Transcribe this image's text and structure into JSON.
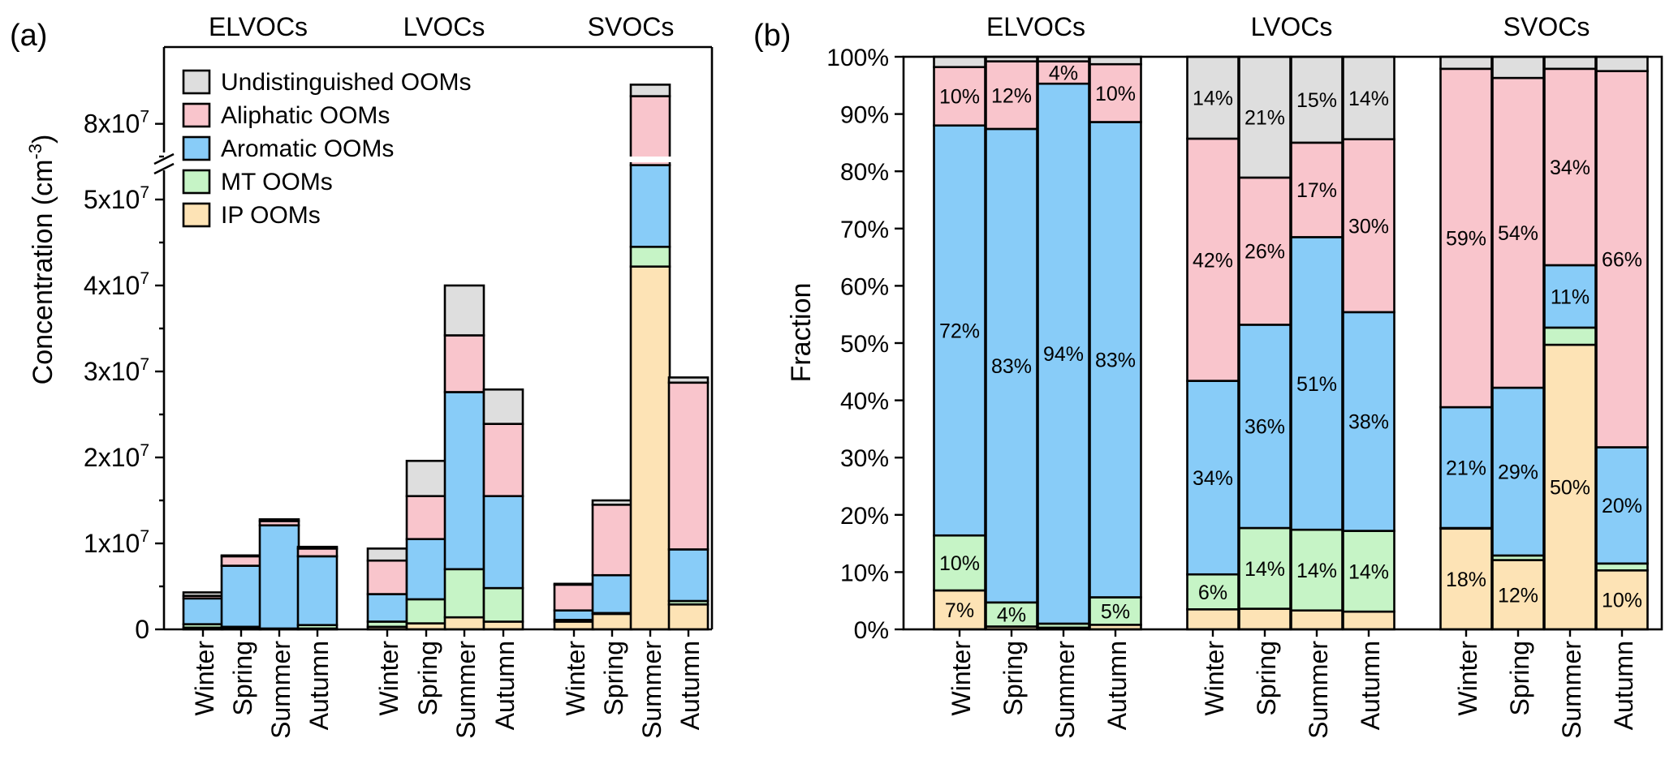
{
  "colors": {
    "ip": "#FDE3B5",
    "mt": "#C6F4C6",
    "aromatic": "#88CCF8",
    "aliphatic": "#F9C5CC",
    "undistinguished": "#DEDEDE"
  },
  "chart_data": [
    {
      "panel_label": "(a)",
      "type": "bar",
      "stacked": true,
      "ylabel_text": "Concentration (cm",
      "ylabel_sup": "-3",
      "ylabel_close": ")",
      "ylim_lower": [
        0,
        55000000
      ],
      "ylim_upper": [
        75000000,
        90000000
      ],
      "axis_break": "between 5.5x10^7 and 7.5x10^7",
      "yticks": [
        {
          "value": 0,
          "label": "0",
          "exp": ""
        },
        {
          "value": 10000000,
          "label": "1x10",
          "exp": "7"
        },
        {
          "value": 20000000,
          "label": "2x10",
          "exp": "7"
        },
        {
          "value": 30000000,
          "label": "3x10",
          "exp": "7"
        },
        {
          "value": 40000000,
          "label": "4x10",
          "exp": "7"
        },
        {
          "value": 50000000,
          "label": "5x10",
          "exp": "7"
        },
        {
          "value": 80000000,
          "label": "8x10",
          "exp": "7"
        }
      ],
      "legend": [
        {
          "key": "undistinguished",
          "label": "Undistinguished OOMs"
        },
        {
          "key": "aliphatic",
          "label": "Aliphatic OOMs"
        },
        {
          "key": "aromatic",
          "label": "Aromatic OOMs"
        },
        {
          "key": "mt",
          "label": "MT OOMs"
        },
        {
          "key": "ip",
          "label": "IP OOMs"
        }
      ],
      "stack_order": [
        "ip",
        "mt",
        "aromatic",
        "aliphatic",
        "undistinguished"
      ],
      "groups": [
        {
          "name": "ELVOCs",
          "bars": [
            {
              "season": "Winter",
              "values": [
                200000,
                400000,
                3000000,
                300000,
                400000
              ]
            },
            {
              "season": "Spring",
              "values": [
                100000,
                200000,
                7100000,
                1100000,
                100000
              ]
            },
            {
              "season": "Summer",
              "values": [
                0,
                100000,
                12000000,
                500000,
                200000
              ]
            },
            {
              "season": "Autumn",
              "values": [
                100000,
                400000,
                8000000,
                900000,
                200000
              ]
            }
          ]
        },
        {
          "name": "LVOCs",
          "bars": [
            {
              "season": "Winter",
              "values": [
                300000,
                600000,
                3200000,
                3900000,
                1400000
              ]
            },
            {
              "season": "Spring",
              "values": [
                700000,
                2800000,
                7000000,
                5000000,
                4100000
              ]
            },
            {
              "season": "Summer",
              "values": [
                1400000,
                5600000,
                20600000,
                6600000,
                5800000
              ]
            },
            {
              "season": "Autumn",
              "values": [
                900000,
                3900000,
                10700000,
                8400000,
                4000000
              ]
            }
          ]
        },
        {
          "name": "SVOCs",
          "bars": [
            {
              "season": "Winter",
              "values": [
                900000,
                200000,
                1100000,
                3000000,
                100000
              ]
            },
            {
              "season": "Spring",
              "values": [
                1800000,
                100000,
                4400000,
                8200000,
                500000
              ]
            },
            {
              "season": "Summer",
              "values": [
                42200000,
                2300000,
                9500000,
                29600000,
                1500000
              ]
            },
            {
              "season": "Autumn",
              "values": [
                2900000,
                400000,
                6000000,
                19400000,
                600000
              ]
            }
          ]
        }
      ]
    },
    {
      "panel_label": "(b)",
      "type": "bar",
      "stacked": true,
      "ylabel": "Fraction",
      "ylim": [
        0,
        100
      ],
      "yticks": [
        "0%",
        "10%",
        "20%",
        "30%",
        "40%",
        "50%",
        "60%",
        "70%",
        "80%",
        "90%",
        "100%"
      ],
      "stack_order": [
        "ip",
        "mt",
        "aromatic",
        "aliphatic",
        "undistinguished"
      ],
      "groups": [
        {
          "name": "ELVOCs",
          "bars": [
            {
              "season": "Winter",
              "values": [
                6.8,
                9.6,
                71.6,
                10.2,
                1.8
              ],
              "labels": [
                "7%",
                "10%",
                "72%",
                "10%",
                ""
              ]
            },
            {
              "season": "Spring",
              "values": [
                0.5,
                4.2,
                82.7,
                11.8,
                0.8
              ],
              "labels": [
                "",
                "4%",
                "83%",
                "12%",
                ""
              ]
            },
            {
              "season": "Summer",
              "values": [
                0.3,
                0.7,
                94.3,
                3.9,
                0.8
              ],
              "labels": [
                "",
                "",
                "94%",
                "4%",
                ""
              ]
            },
            {
              "season": "Autumn",
              "values": [
                0.8,
                4.8,
                83.0,
                10.1,
                1.3
              ],
              "labels": [
                "",
                "5%",
                "83%",
                "10%",
                ""
              ]
            }
          ]
        },
        {
          "name": "LVOCs",
          "bars": [
            {
              "season": "Winter",
              "values": [
                3.5,
                6.1,
                33.8,
                42.3,
                14.3
              ],
              "labels": [
                "",
                "6%",
                "34%",
                "42%",
                "14%"
              ]
            },
            {
              "season": "Spring",
              "values": [
                3.6,
                14.1,
                35.5,
                25.7,
                21.1
              ],
              "labels": [
                "",
                "14%",
                "36%",
                "26%",
                "21%"
              ]
            },
            {
              "season": "Summer",
              "values": [
                3.3,
                14.1,
                51.1,
                16.5,
                15.0
              ],
              "labels": [
                "",
                "14%",
                "51%",
                "17%",
                "15%"
              ]
            },
            {
              "season": "Autumn",
              "values": [
                3.1,
                14.1,
                38.2,
                30.2,
                14.4
              ],
              "labels": [
                "",
                "14%",
                "38%",
                "30%",
                "14%"
              ]
            }
          ]
        },
        {
          "name": "SVOCs",
          "bars": [
            {
              "season": "Winter",
              "values": [
                17.6,
                0.1,
                21.1,
                59.1,
                2.1
              ],
              "labels": [
                "18%",
                "",
                "21%",
                "59%",
                ""
              ]
            },
            {
              "season": "Spring",
              "values": [
                12.1,
                0.8,
                29.3,
                54.1,
                3.7
              ],
              "labels": [
                "12%",
                "",
                "29%",
                "54%",
                ""
              ]
            },
            {
              "season": "Summer",
              "values": [
                49.7,
                3.0,
                10.9,
                34.3,
                2.1
              ],
              "labels": [
                "50%",
                "",
                "11%",
                "34%",
                ""
              ]
            },
            {
              "season": "Autumn",
              "values": [
                10.3,
                1.2,
                20.3,
                65.7,
                2.5
              ],
              "labels": [
                "10%",
                "",
                "20%",
                "66%",
                ""
              ]
            }
          ]
        }
      ]
    }
  ]
}
